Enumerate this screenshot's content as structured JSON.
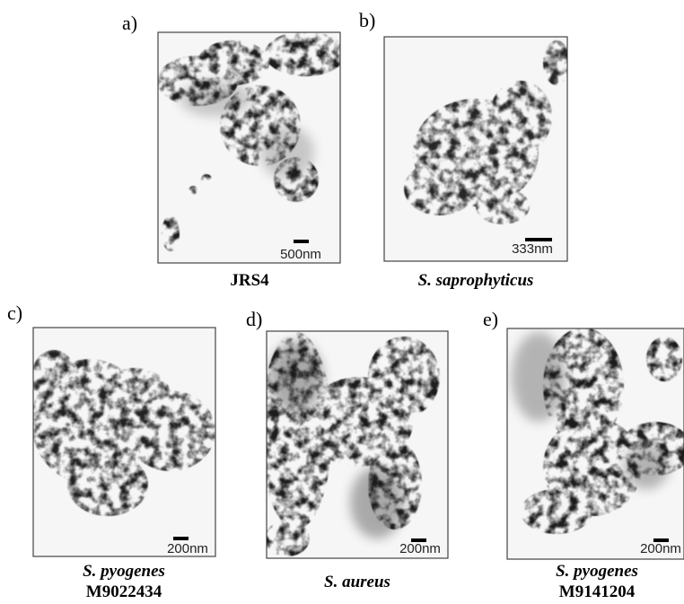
{
  "panels": [
    {
      "label": "a)",
      "scale_bar": "500nm",
      "caption": [
        "JRS4"
      ]
    },
    {
      "label": "b)",
      "scale_bar": "333nm",
      "caption": [
        "S. saprophyticus"
      ]
    },
    {
      "label": "c)",
      "scale_bar": "200nm",
      "caption": [
        "S. pyogenes",
        "M9022434"
      ]
    },
    {
      "label": "d)",
      "scale_bar": "200nm",
      "caption": [
        "S. aureus"
      ]
    },
    {
      "label": "e)",
      "scale_bar": "200nm",
      "caption": [
        "S. pyogenes",
        "M9141204"
      ]
    }
  ]
}
